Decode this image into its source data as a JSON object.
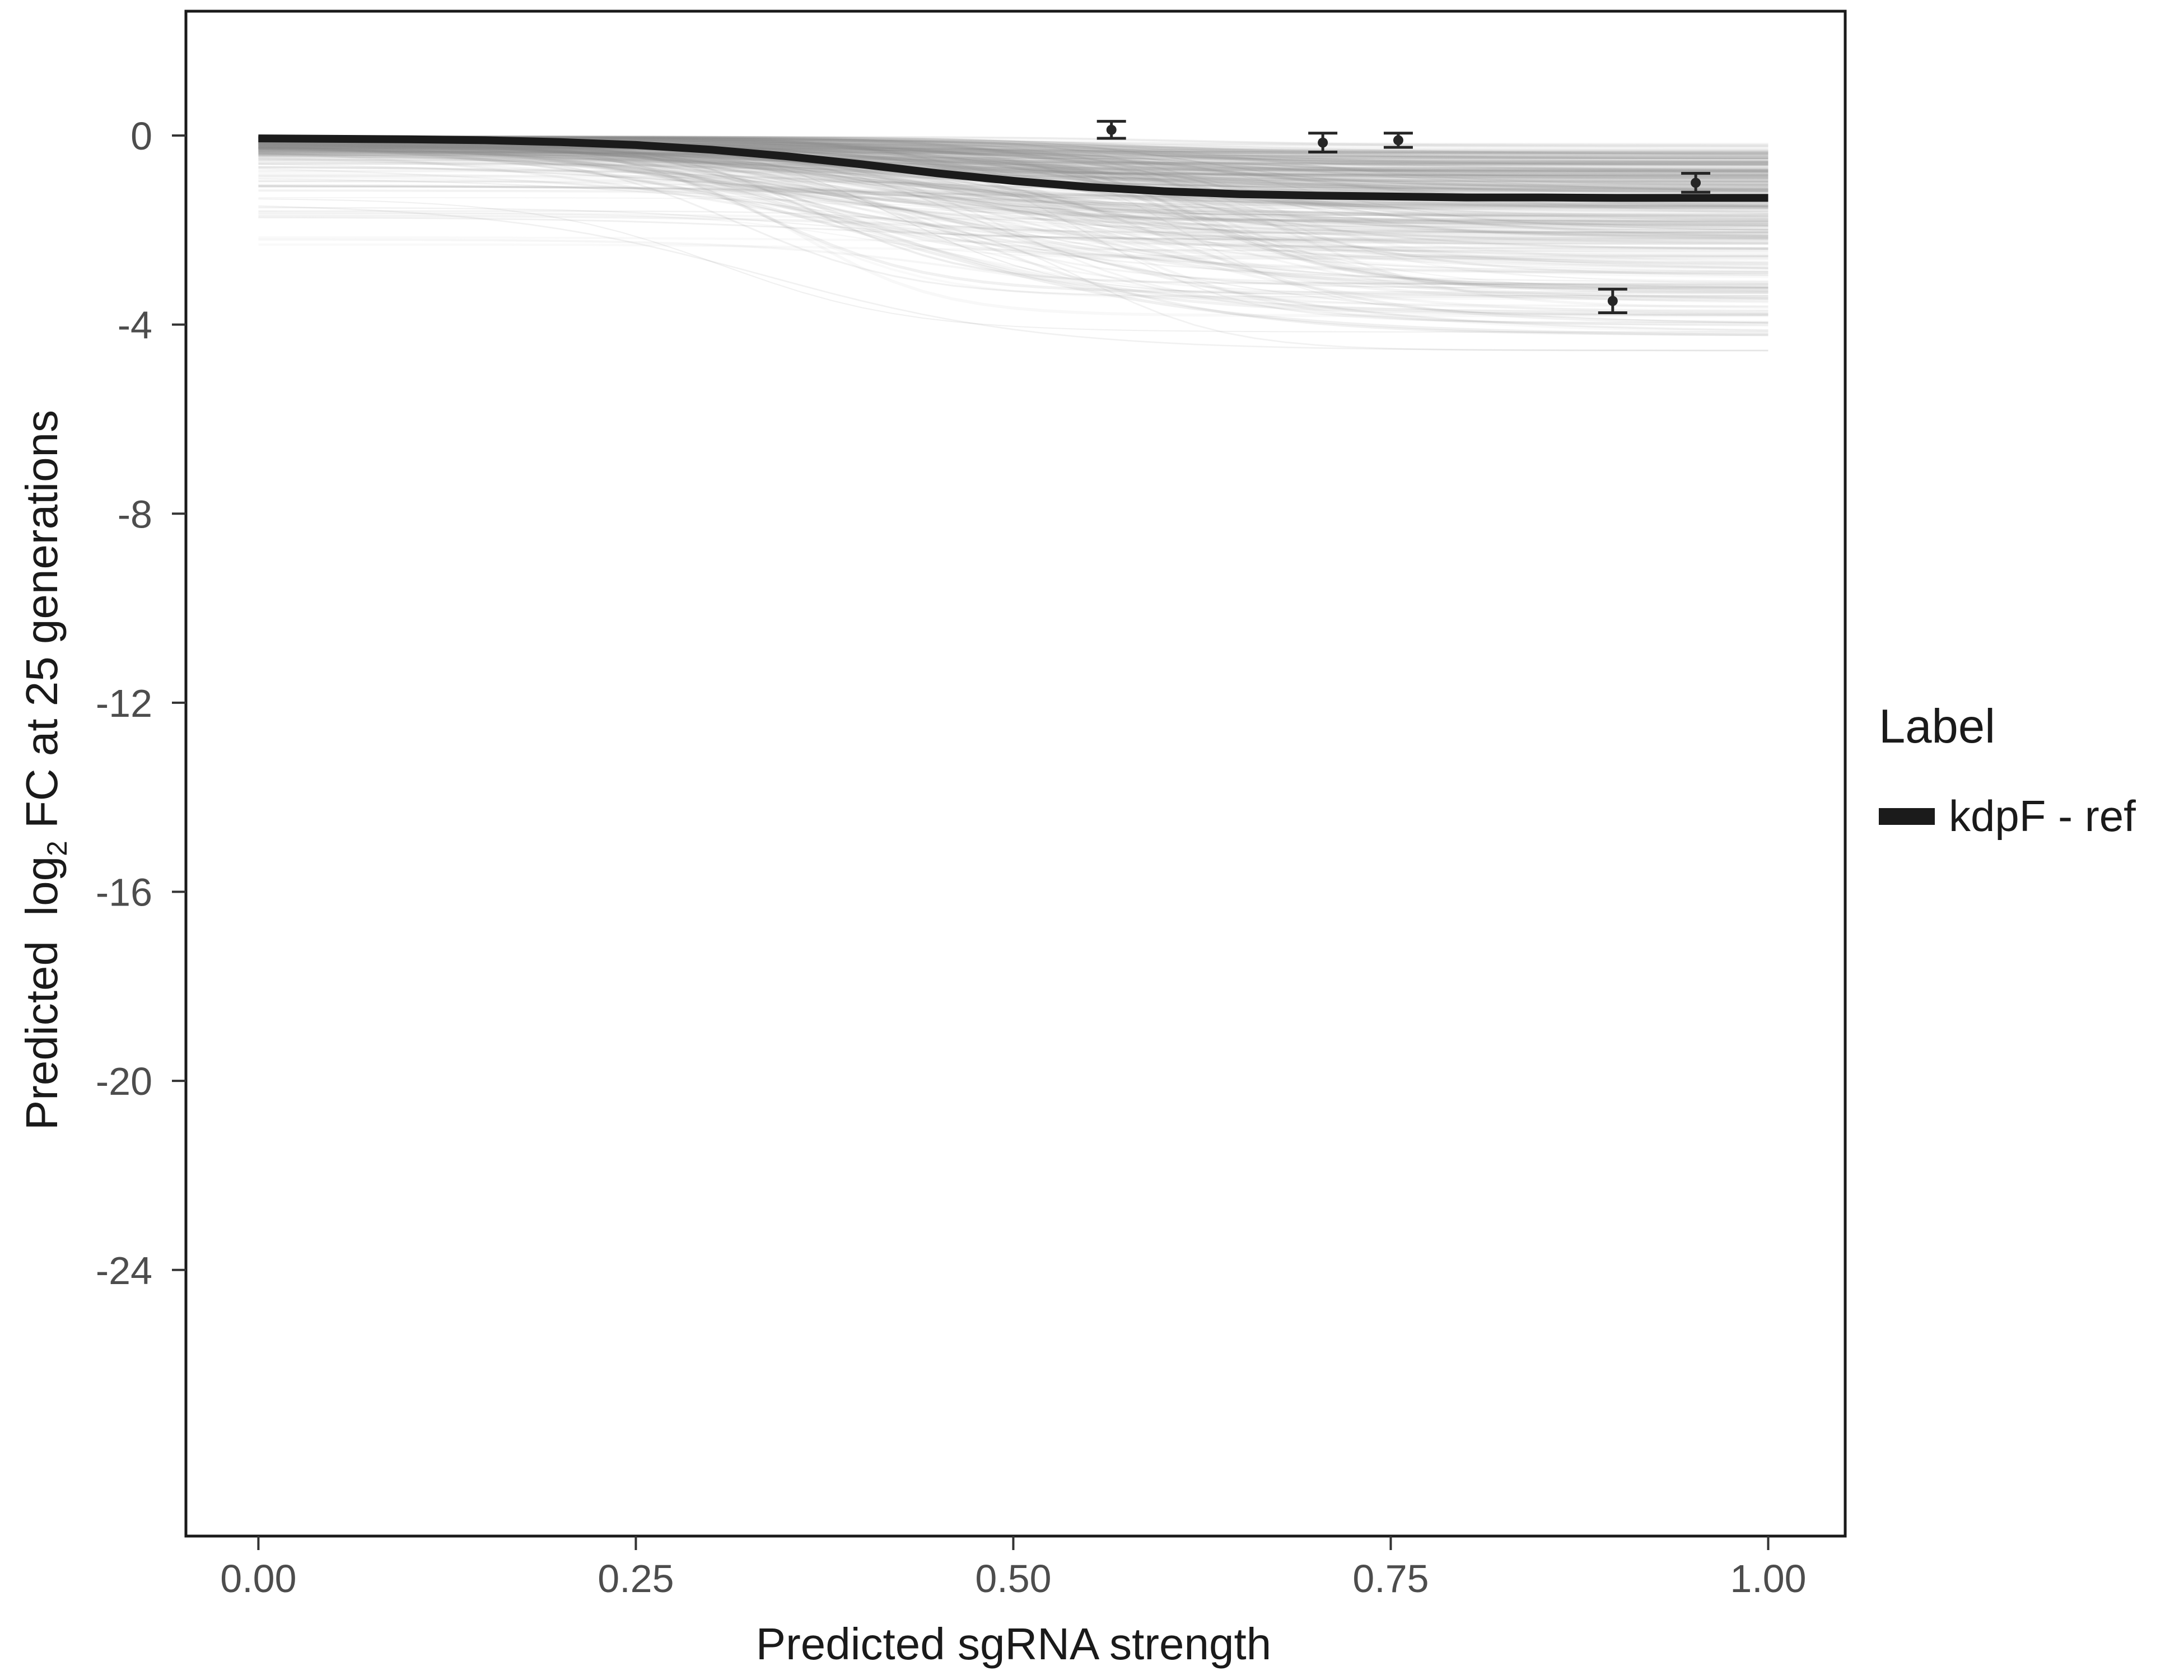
{
  "figure": {
    "x_axis_title": "Predicted sgRNA strength",
    "y_axis_title_parts": {
      "pre": "Predicted  log",
      "sub": "2",
      "post": " FC at 25 generations"
    },
    "legend": {
      "title": "Label",
      "items": [
        {
          "label": "kdpF - ref",
          "color": "#1b1b1b"
        }
      ]
    }
  },
  "chart_data": {
    "type": "line",
    "title": "",
    "xlabel": "Predicted sgRNA strength",
    "ylabel": "Predicted log₂ FC at 25 generations",
    "xlim": [
      -0.048,
      1.051
    ],
    "ylim": [
      -29.63,
      2.63
    ],
    "grid": false,
    "legend_position": "right",
    "x_ticks": [
      {
        "value": 0.0,
        "label": "0.00"
      },
      {
        "value": 0.25,
        "label": "0.25"
      },
      {
        "value": 0.5,
        "label": "0.50"
      },
      {
        "value": 0.75,
        "label": "0.75"
      },
      {
        "value": 1.0,
        "label": "1.00"
      }
    ],
    "y_ticks": [
      {
        "value": 0,
        "label": "0"
      },
      {
        "value": -4,
        "label": "-4"
      },
      {
        "value": -8,
        "label": "-8"
      },
      {
        "value": -12,
        "label": "-12"
      },
      {
        "value": -16,
        "label": "-16"
      },
      {
        "value": -20,
        "label": "-20"
      },
      {
        "value": -24,
        "label": "-24"
      }
    ],
    "series": [
      {
        "name": "kdpF - ref",
        "role": "highlighted-reference-curve",
        "color": "#1b1b1b",
        "width": 14,
        "x": [
          0,
          0.05,
          0.1,
          0.15,
          0.2,
          0.25,
          0.3,
          0.35,
          0.4,
          0.45,
          0.5,
          0.55,
          0.6,
          0.65,
          0.7,
          0.75,
          0.8,
          0.85,
          0.9,
          0.95,
          1.0
        ],
        "y": [
          -0.06,
          -0.07,
          -0.08,
          -0.1,
          -0.14,
          -0.2,
          -0.3,
          -0.44,
          -0.61,
          -0.8,
          -0.96,
          -1.09,
          -1.18,
          -1.24,
          -1.27,
          -1.29,
          -1.31,
          -1.31,
          -1.32,
          -1.32,
          -1.32
        ]
      }
    ],
    "points": [
      {
        "x": 0.565,
        "y": 0.12,
        "error": 0.18
      },
      {
        "x": 0.705,
        "y": -0.15,
        "error": 0.2
      },
      {
        "x": 0.755,
        "y": -0.1,
        "error": 0.15
      },
      {
        "x": 0.897,
        "y": -3.5,
        "error": 0.25
      },
      {
        "x": 0.952,
        "y": -1.0,
        "error": 0.2
      }
    ],
    "background_curves": {
      "description": "dense ensemble of thin translucent grey sigmoid fit curves spanning 0 to about -4.5 log2 FC",
      "count": 300,
      "seed": 7,
      "color": "#8c8c8c",
      "start_y_range": [
        0,
        -2.7
      ],
      "end_y_range": [
        -0.1,
        -4.55
      ],
      "inflection_x_range": [
        0.28,
        0.68
      ]
    }
  }
}
